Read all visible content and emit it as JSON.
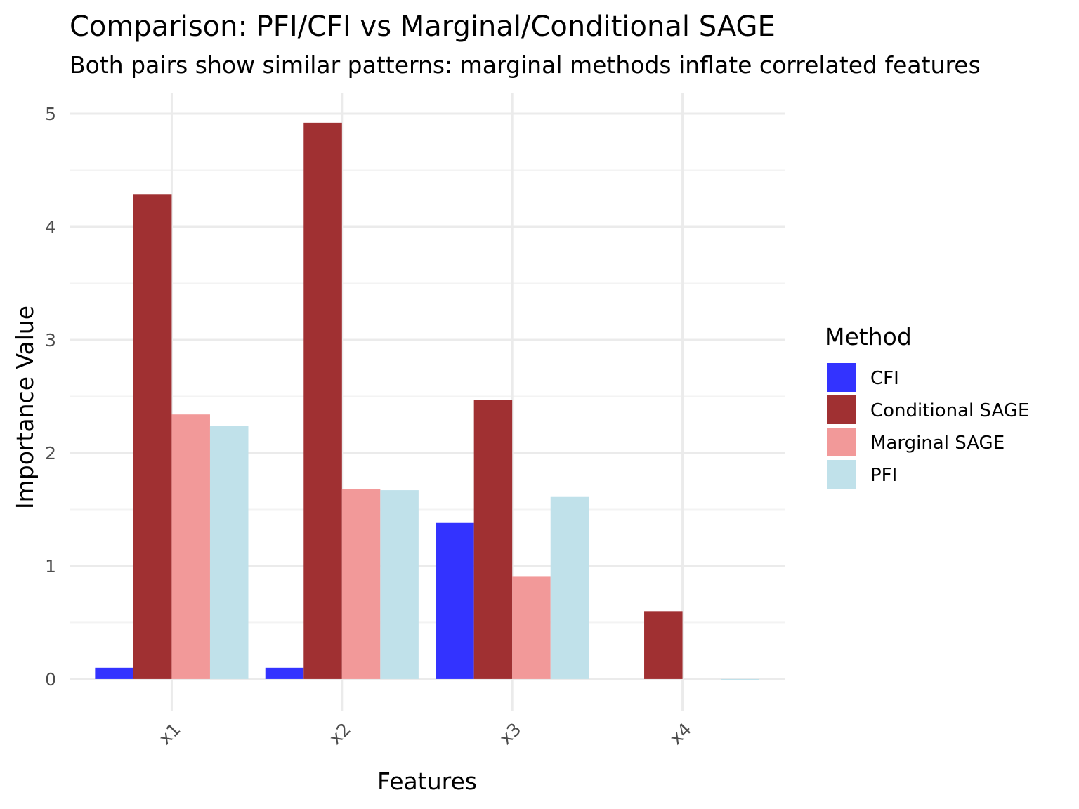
{
  "chart_data": {
    "type": "bar",
    "title": "Comparison: PFI/CFI vs Marginal/Conditional SAGE",
    "subtitle": "Both pairs show similar patterns: marginal methods inflate correlated features",
    "xlabel": "Features",
    "ylabel": "Importance Value",
    "categories": [
      "x1",
      "x2",
      "x3",
      "x4"
    ],
    "ylim": [
      -0.28,
      5.18
    ],
    "y_ticks": [
      0,
      1,
      2,
      3,
      4,
      5
    ],
    "grid": true,
    "legend": {
      "title": "Method",
      "position": "right"
    },
    "series": [
      {
        "name": "CFI",
        "color": "#3333FF",
        "values": [
          0.1,
          0.1,
          1.38,
          0.0
        ]
      },
      {
        "name": "Conditional SAGE",
        "color": "#A03032",
        "values": [
          4.29,
          4.92,
          2.47,
          0.6
        ]
      },
      {
        "name": "Marginal SAGE",
        "color": "#F29999",
        "values": [
          2.34,
          1.68,
          0.91,
          0.0
        ]
      },
      {
        "name": "PFI",
        "color": "#C0E1EA",
        "values": [
          2.24,
          1.67,
          1.61,
          -0.01
        ]
      }
    ]
  }
}
